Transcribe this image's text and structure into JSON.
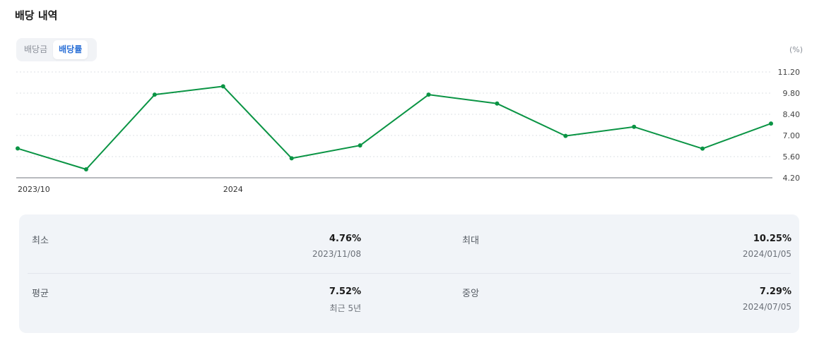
{
  "title": "배당 내역",
  "tabs": {
    "dividend_amount": "배당금",
    "dividend_yield": "배당률"
  },
  "unit": "(%)",
  "colors": {
    "line": "#0a9444",
    "active_tab": "#2a6fd6",
    "panel": "#f1f4f8"
  },
  "chart_data": {
    "type": "line",
    "x": [
      "2023/10/06",
      "2023/11/08",
      "2023/12/08",
      "2024/01/05",
      "2024/02/08",
      "2024/03/08",
      "2024/04/05",
      "2024/05/08",
      "2024/06/07",
      "2024/07/05",
      "2024/08/08",
      "2024/09/06"
    ],
    "series": [
      {
        "values": [
          6.14,
          4.76,
          9.7,
          10.25,
          5.49,
          6.34,
          9.7,
          9.11,
          6.97,
          7.57,
          6.13,
          7.79
        ]
      }
    ],
    "x_tick_labels": [
      "2023/10",
      "2024"
    ],
    "y_ticks": [
      "11.20",
      "9.80",
      "8.40",
      "7.00",
      "5.60",
      "4.20"
    ],
    "ylim": [
      4.2,
      11.2
    ],
    "grid": true
  },
  "stats": {
    "min": {
      "label": "최소",
      "value": "4.76%",
      "sub": "2023/11/08"
    },
    "max": {
      "label": "최대",
      "value": "10.25%",
      "sub": "2024/01/05"
    },
    "avg": {
      "label": "평균",
      "value": "7.52%",
      "sub": "최근 5년"
    },
    "median": {
      "label": "중앙",
      "value": "7.29%",
      "sub": "2024/07/05"
    }
  }
}
